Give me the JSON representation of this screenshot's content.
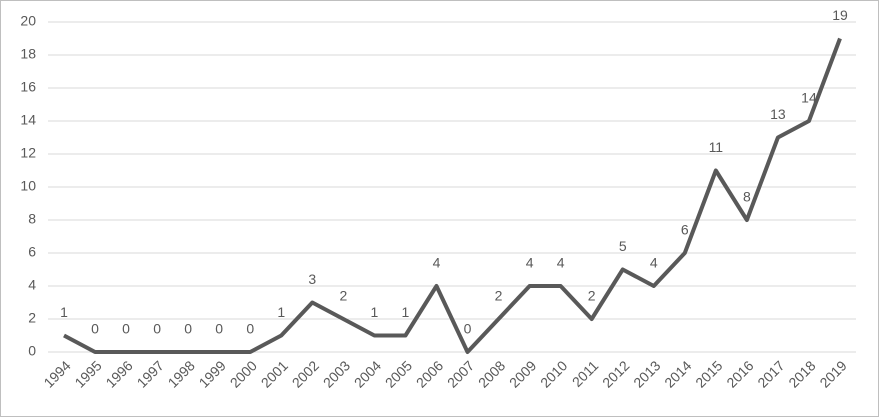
{
  "chart_data": {
    "type": "line",
    "categories": [
      "1994",
      "1995",
      "1996",
      "1997",
      "1998",
      "1999",
      "2000",
      "2001",
      "2002",
      "2003",
      "2004",
      "2005",
      "2006",
      "2007",
      "2008",
      "2009",
      "2010",
      "2011",
      "2012",
      "2013",
      "2014",
      "2015",
      "2016",
      "2017",
      "2018",
      "2019"
    ],
    "values": [
      1,
      0,
      0,
      0,
      0,
      0,
      0,
      1,
      3,
      2,
      1,
      1,
      4,
      0,
      2,
      4,
      4,
      2,
      5,
      4,
      6,
      11,
      8,
      13,
      14,
      19
    ],
    "color": "#595959",
    "ylim": [
      0,
      20
    ],
    "yticks": [
      0,
      2,
      4,
      6,
      8,
      10,
      12,
      14,
      16,
      18,
      20
    ],
    "grid": true,
    "data_labels": true
  }
}
